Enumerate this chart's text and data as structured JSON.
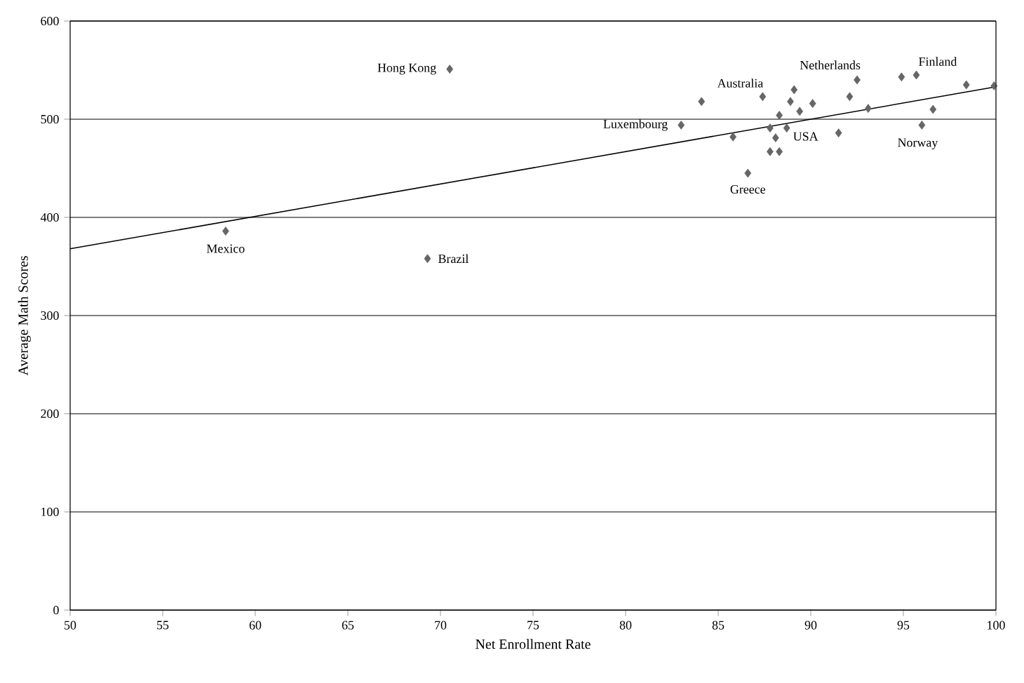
{
  "chart_data": {
    "type": "scatter",
    "xlabel": "Net Enrollment Rate",
    "ylabel": "Average Math Scores",
    "xlim": [
      50,
      100
    ],
    "ylim": [
      0,
      600
    ],
    "xticks": [
      50,
      55,
      60,
      65,
      70,
      75,
      80,
      85,
      90,
      95,
      100
    ],
    "yticks": [
      0,
      100,
      200,
      300,
      400,
      500,
      600
    ],
    "grid": "y",
    "series": [
      {
        "marker": "diamond",
        "color": "#666666",
        "x": [
          83.0,
          84.1,
          85.8,
          86.6,
          87.4,
          87.8,
          88.1,
          87.8,
          88.3,
          88.3,
          88.7,
          88.9,
          89.1,
          89.4,
          90.1,
          91.5,
          92.1,
          92.5,
          93.1,
          94.9,
          95.7,
          96.0,
          96.6,
          98.4,
          99.9,
          70.5,
          58.4,
          69.3
        ],
        "values": [
          494,
          518,
          482,
          445,
          523,
          491,
          481,
          467,
          467,
          504,
          491,
          518,
          530,
          508,
          516,
          486,
          523,
          540,
          511,
          543,
          545,
          494,
          510,
          535,
          534,
          551,
          386,
          358
        ]
      },
      {
        "type": "line",
        "color": "#000000",
        "x": [
          50,
          100
        ],
        "values": [
          368,
          533
        ]
      }
    ],
    "annotations": [
      {
        "text": "Hong Kong",
        "x": 70.5,
        "y": 551
      },
      {
        "text": "Australia",
        "x": 87.4,
        "y": 523
      },
      {
        "text": "Netherlands",
        "x": 92.5,
        "y": 540
      },
      {
        "text": "Finland",
        "x": 95.7,
        "y": 545
      },
      {
        "text": "Luxembourg",
        "x": 83.0,
        "y": 494
      },
      {
        "text": "USA",
        "x": 88.7,
        "y": 491
      },
      {
        "text": "Greece",
        "x": 86.6,
        "y": 445
      },
      {
        "text": "Norway",
        "x": 96.0,
        "y": 494
      },
      {
        "text": "Mexico",
        "x": 58.4,
        "y": 386
      },
      {
        "text": "Brazil",
        "x": 69.3,
        "y": 358
      }
    ]
  }
}
